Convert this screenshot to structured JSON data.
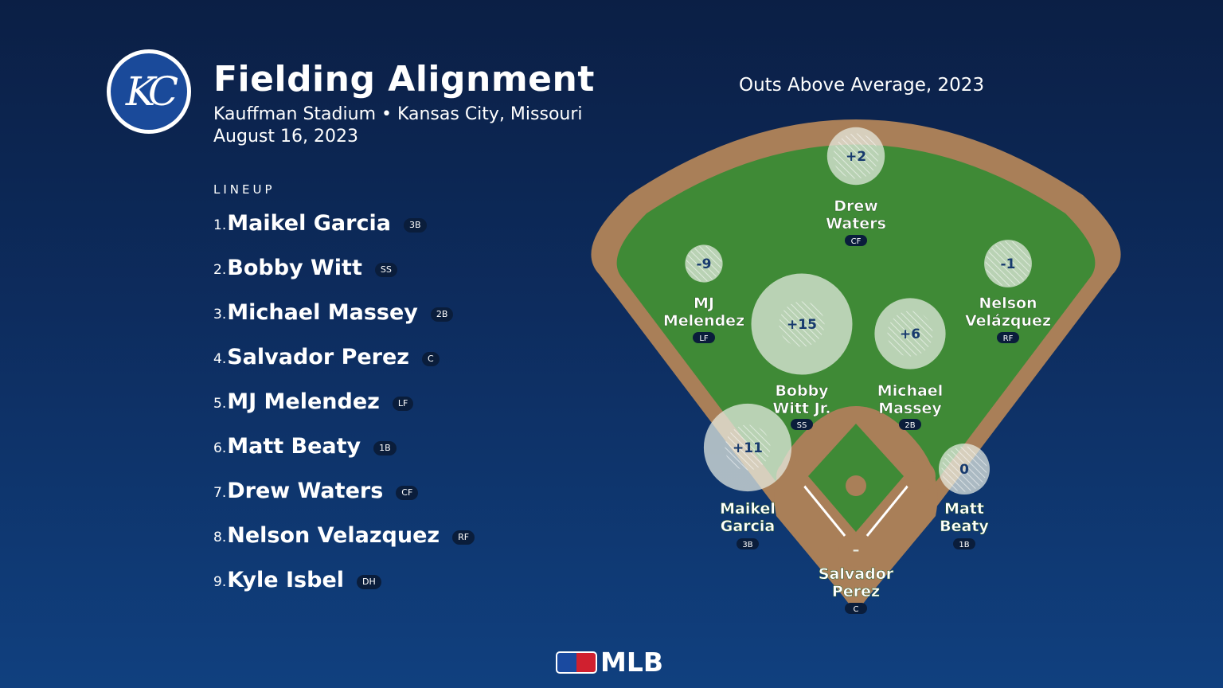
{
  "header": {
    "logo_text": "KC",
    "title": "Fielding Alignment",
    "subtitle": "Kauffman Stadium • Kansas City, Missouri",
    "date": "August 16, 2023"
  },
  "lineup": {
    "heading": "LINEUP",
    "players": [
      {
        "num": "1.",
        "name": "Maikel Garcia",
        "pos": "3B"
      },
      {
        "num": "2.",
        "name": "Bobby Witt",
        "pos": "SS"
      },
      {
        "num": "3.",
        "name": "Michael Massey",
        "pos": "2B"
      },
      {
        "num": "4.",
        "name": "Salvador Perez",
        "pos": "C"
      },
      {
        "num": "5.",
        "name": "MJ Melendez",
        "pos": "LF"
      },
      {
        "num": "6.",
        "name": "Matt Beaty",
        "pos": "1B"
      },
      {
        "num": "7.",
        "name": "Drew Waters",
        "pos": "CF"
      },
      {
        "num": "8.",
        "name": "Nelson Velazquez",
        "pos": "RF"
      },
      {
        "num": "9.",
        "name": "Kyle Isbel",
        "pos": "DH"
      }
    ]
  },
  "chart_title": "Outs Above Average, 2023",
  "fielders": [
    {
      "name_lines": [
        "Drew",
        "Waters"
      ],
      "pos": "CF",
      "oaa_label": "+2",
      "oaa": 2
    },
    {
      "name_lines": [
        "MJ",
        "Melendez"
      ],
      "pos": "LF",
      "oaa_label": "-9",
      "oaa": -9
    },
    {
      "name_lines": [
        "Nelson",
        "Velázquez"
      ],
      "pos": "RF",
      "oaa_label": "-1",
      "oaa": -1
    },
    {
      "name_lines": [
        "Bobby",
        "Witt Jr."
      ],
      "pos": "SS",
      "oaa_label": "+15",
      "oaa": 15
    },
    {
      "name_lines": [
        "Michael",
        "Massey"
      ],
      "pos": "2B",
      "oaa_label": "+6",
      "oaa": 6
    },
    {
      "name_lines": [
        "Maikel",
        "Garcia"
      ],
      "pos": "3B",
      "oaa_label": "+11",
      "oaa": 11
    },
    {
      "name_lines": [
        "Matt",
        "Beaty"
      ],
      "pos": "1B",
      "oaa_label": "0",
      "oaa": 0
    },
    {
      "name_lines": [
        "Salvador",
        "Perez"
      ],
      "pos": "C",
      "oaa_label": "–",
      "oaa": null
    }
  ],
  "colors": {
    "grass": "#3f8a36",
    "dirt": "#a97f58",
    "badge": "#0a1d3b",
    "bubble": "#e9eee5",
    "label": "#173a6e"
  },
  "footer": {
    "brand": "MLB"
  }
}
